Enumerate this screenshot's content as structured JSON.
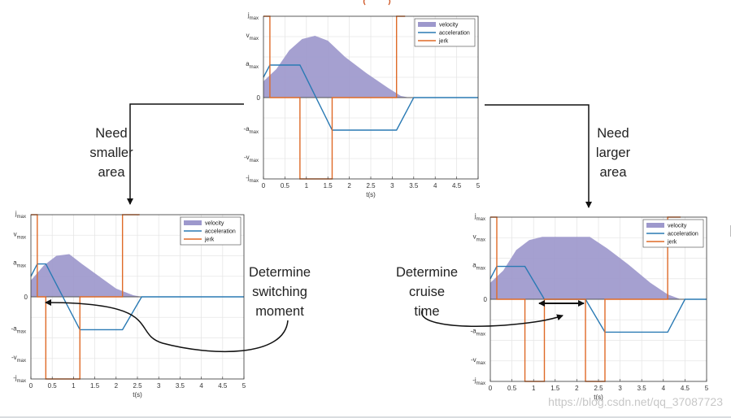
{
  "colors": {
    "velocity": "#9d98cc",
    "acceleration": "#2a7ab4",
    "jerk": "#df6a27",
    "red_fragment": "#d05a2a"
  },
  "figures": {
    "top": {
      "legend": [
        "velocity",
        "acceleration",
        "jerk"
      ],
      "xlabel": "t(s)",
      "xticks": [
        "0",
        "0.5",
        "1",
        "1.5",
        "2",
        "2.5",
        "3",
        "3.5",
        "4",
        "4.5",
        "5"
      ],
      "ylabels": {
        "jmax": "max",
        "vmax": "max",
        "amax": "max",
        "zero": "0",
        "neg_amax": "-a",
        "neg_vmax": "-v",
        "neg_jmax": "-j",
        "sub": "max"
      }
    },
    "left": {
      "legend": [
        "velocity",
        "acceleration",
        "jerk"
      ],
      "xlabel": "t(s)",
      "xticks": [
        "0",
        "0.5",
        "1",
        "1.5",
        "2",
        "2.5",
        "3",
        "3.5",
        "4",
        "4.5",
        "5"
      ]
    },
    "right": {
      "legend": [
        "velocity",
        "acceleration",
        "jerk"
      ],
      "xlabel": "t(s)",
      "xticks": [
        "0",
        "0.5",
        "1",
        "1.5",
        "2",
        "2.5",
        "3",
        "3.5",
        "4",
        "4.5",
        "5"
      ]
    }
  },
  "annotations": {
    "need_smaller_area": [
      "Need",
      "smaller",
      "area"
    ],
    "need_larger_area": [
      "Need",
      "larger",
      "area"
    ],
    "determine_switching": [
      "Determine",
      "switching",
      "moment"
    ],
    "determine_cruise": [
      "Determine",
      "cruise",
      "time"
    ]
  },
  "watermark": "https://blog.csdn.net/qq_37087723"
}
